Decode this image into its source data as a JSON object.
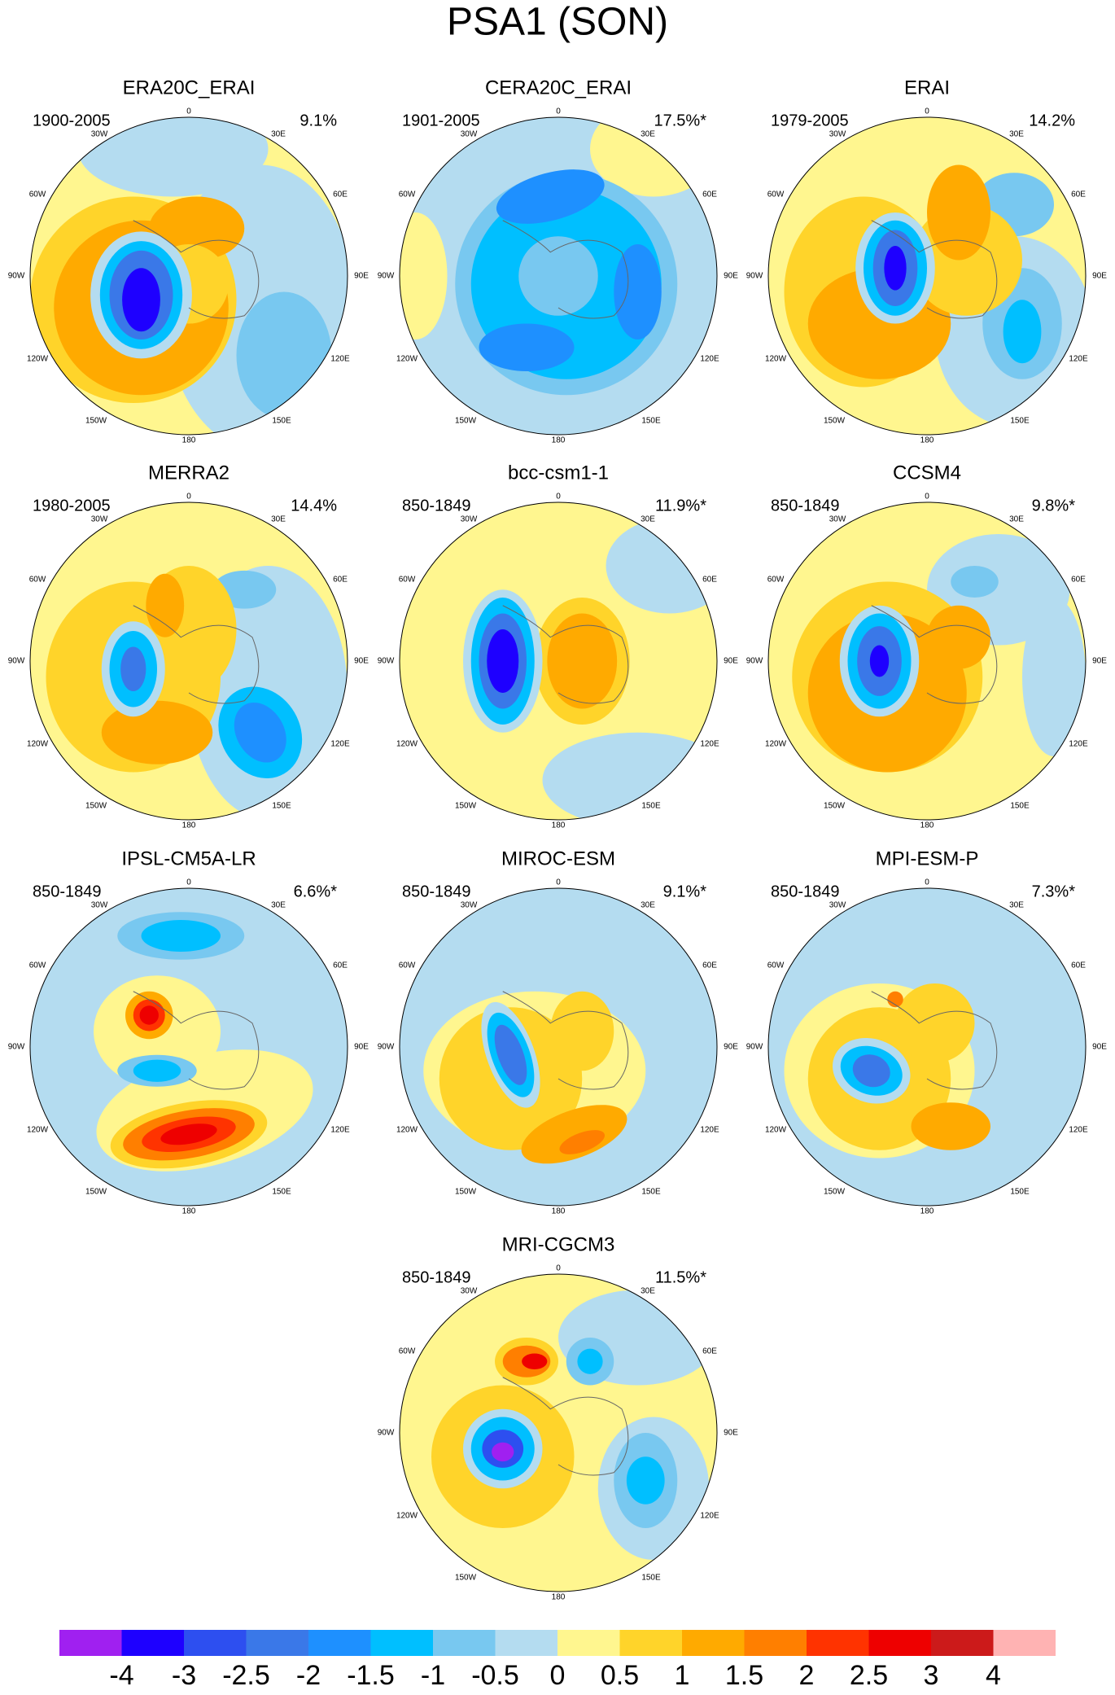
{
  "title": "PSA1 (SON)",
  "panels": [
    {
      "title": "ERA20C_ERAI",
      "period": "1900-2005",
      "variance": "9.1%"
    },
    {
      "title": "CERA20C_ERAI",
      "period": "1901-2005",
      "variance": "17.5%*"
    },
    {
      "title": "ERAI",
      "period": "1979-2005",
      "variance": "14.2%"
    },
    {
      "title": "MERRA2",
      "period": "1980-2005",
      "variance": "14.4%"
    },
    {
      "title": "bcc-csm1-1",
      "period": "850-1849",
      "variance": "11.9%*"
    },
    {
      "title": "CCSM4",
      "period": "850-1849",
      "variance": "9.8%*"
    },
    {
      "title": "IPSL-CM5A-LR",
      "period": "850-1849",
      "variance": "6.6%*"
    },
    {
      "title": "MIROC-ESM",
      "period": "850-1849",
      "variance": "9.1%*"
    },
    {
      "title": "MPI-ESM-P",
      "period": "850-1849",
      "variance": "7.3%*"
    },
    {
      "title": "MRI-CGCM3",
      "period": "850-1849",
      "variance": "11.5%*"
    }
  ],
  "longitude_labels": [
    "0",
    "30E",
    "60E",
    "90E",
    "120E",
    "150E",
    "180",
    "150W",
    "120W",
    "90W",
    "60W",
    "30W"
  ],
  "colorbar": {
    "colors": [
      "#a020f0",
      "#1e00ff",
      "#2d4ff0",
      "#3a78e8",
      "#1e90ff",
      "#00bfff",
      "#78c8f0",
      "#b4dcf0",
      "#fff68f",
      "#ffd42a",
      "#ffaa00",
      "#ff7f00",
      "#ff3300",
      "#ee0000",
      "#cc1a1a",
      "#ffb3b3"
    ],
    "labels": [
      -4,
      -3,
      -2.5,
      -2,
      -1.5,
      -1,
      -0.5,
      0,
      0.5,
      1,
      1.5,
      2,
      2.5,
      3,
      4
    ]
  }
}
